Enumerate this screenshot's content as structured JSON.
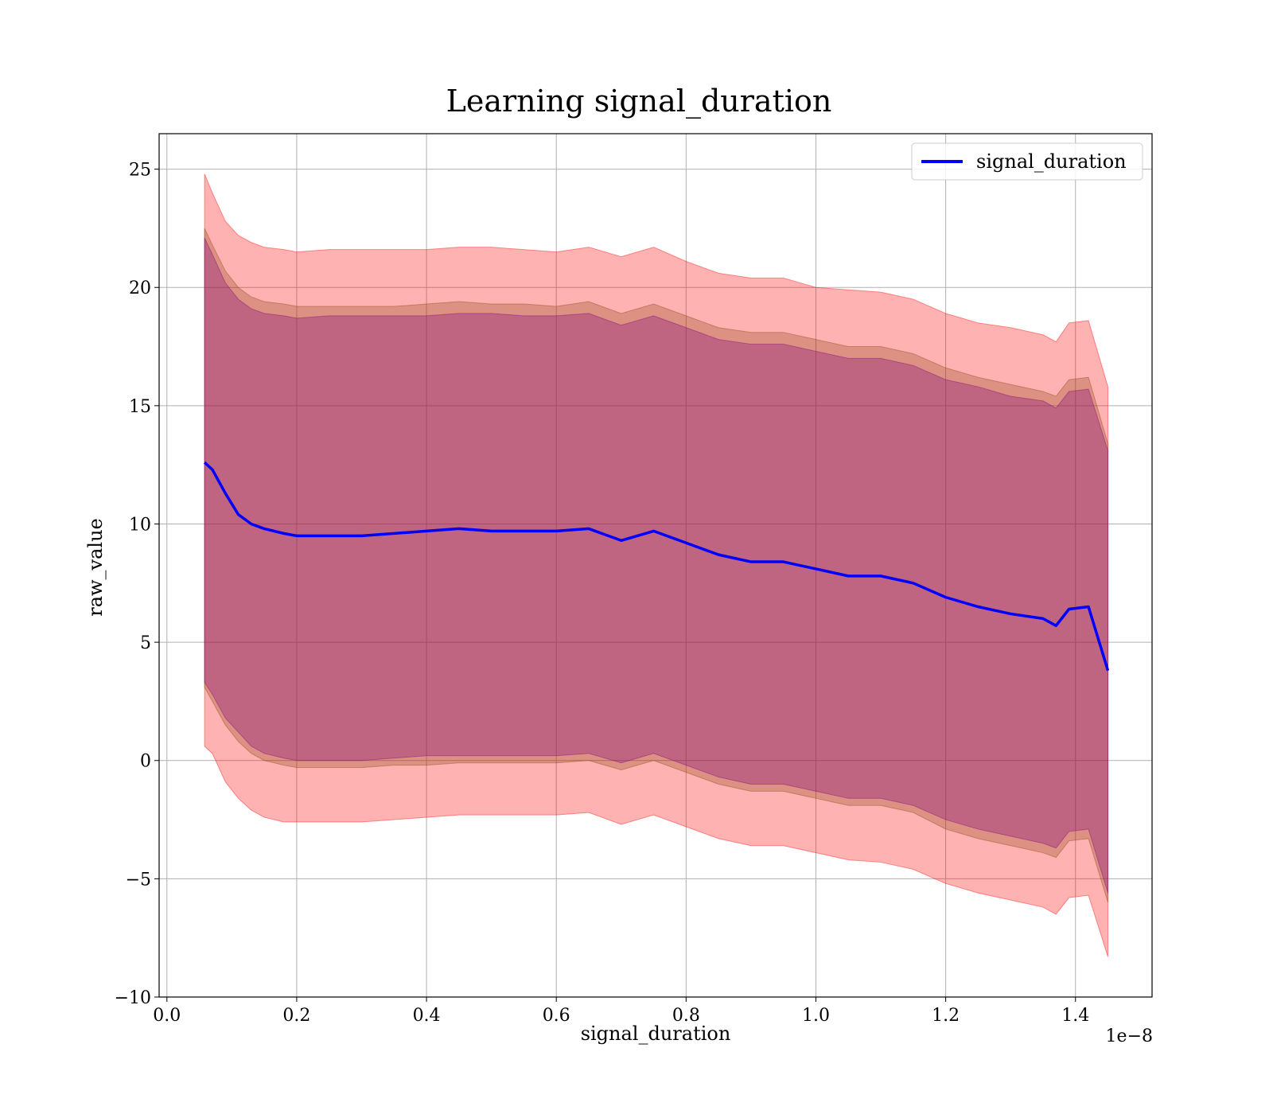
{
  "chart_data": {
    "type": "line",
    "title": "Learning signal_duration",
    "xlabel": "signal_duration",
    "ylabel": "raw_value",
    "x_offset_text": "1e−8",
    "x_scale": 1e-08,
    "xlim": [
      -0.012,
      1.518
    ],
    "ylim": [
      -10,
      26.5
    ],
    "x_ticks": [
      0.0,
      0.2,
      0.4,
      0.6,
      0.8,
      1.0,
      1.2,
      1.4
    ],
    "x_tick_labels": [
      "0.0",
      "0.2",
      "0.4",
      "0.6",
      "0.8",
      "1.0",
      "1.2",
      "1.4"
    ],
    "y_ticks": [
      -10,
      -5,
      0,
      5,
      10,
      15,
      20,
      25
    ],
    "y_tick_labels": [
      "−10",
      "−5",
      "0",
      "5",
      "10",
      "15",
      "20",
      "25"
    ],
    "grid": true,
    "legend_position": "top-right",
    "series": [
      {
        "name": "signal_duration",
        "color": "#0000ff",
        "x": [
          0.058,
          0.07,
          0.09,
          0.11,
          0.13,
          0.15,
          0.18,
          0.2,
          0.25,
          0.3,
          0.35,
          0.4,
          0.45,
          0.5,
          0.55,
          0.6,
          0.65,
          0.7,
          0.75,
          0.8,
          0.85,
          0.9,
          0.95,
          1.0,
          1.05,
          1.1,
          1.15,
          1.2,
          1.25,
          1.3,
          1.35,
          1.37,
          1.39,
          1.42,
          1.45
        ],
        "values": [
          12.6,
          12.3,
          11.3,
          10.4,
          10.0,
          9.8,
          9.6,
          9.5,
          9.5,
          9.5,
          9.6,
          9.7,
          9.8,
          9.7,
          9.7,
          9.7,
          9.8,
          9.3,
          9.7,
          9.2,
          8.7,
          8.4,
          8.4,
          8.1,
          7.8,
          7.8,
          7.5,
          6.9,
          6.5,
          6.2,
          6.0,
          5.7,
          6.4,
          6.5,
          3.8
        ]
      }
    ],
    "bands": [
      {
        "color": "#ff0000",
        "x": [
          0.058,
          0.07,
          0.09,
          0.11,
          0.13,
          0.15,
          0.18,
          0.2,
          0.25,
          0.3,
          0.35,
          0.4,
          0.45,
          0.5,
          0.55,
          0.6,
          0.65,
          0.7,
          0.75,
          0.8,
          0.85,
          0.9,
          0.95,
          1.0,
          1.05,
          1.1,
          1.15,
          1.2,
          1.25,
          1.3,
          1.35,
          1.37,
          1.39,
          1.42,
          1.45
        ],
        "upper": [
          24.8,
          24.0,
          22.8,
          22.2,
          21.9,
          21.7,
          21.6,
          21.5,
          21.6,
          21.6,
          21.6,
          21.6,
          21.7,
          21.7,
          21.6,
          21.5,
          21.7,
          21.3,
          21.7,
          21.1,
          20.6,
          20.4,
          20.4,
          20.0,
          19.9,
          19.8,
          19.5,
          18.9,
          18.5,
          18.3,
          18.0,
          17.7,
          18.5,
          18.6,
          15.8
        ],
        "lower": [
          0.6,
          0.3,
          -0.9,
          -1.6,
          -2.1,
          -2.4,
          -2.6,
          -2.6,
          -2.6,
          -2.6,
          -2.5,
          -2.4,
          -2.3,
          -2.3,
          -2.3,
          -2.3,
          -2.2,
          -2.7,
          -2.3,
          -2.8,
          -3.3,
          -3.6,
          -3.6,
          -3.9,
          -4.2,
          -4.3,
          -4.6,
          -5.2,
          -5.6,
          -5.9,
          -6.2,
          -6.5,
          -5.8,
          -5.7,
          -8.3
        ]
      },
      {
        "color": "#8b4513",
        "x": [
          0.058,
          0.07,
          0.09,
          0.11,
          0.13,
          0.15,
          0.18,
          0.2,
          0.25,
          0.3,
          0.35,
          0.4,
          0.45,
          0.5,
          0.55,
          0.6,
          0.65,
          0.7,
          0.75,
          0.8,
          0.85,
          0.9,
          0.95,
          1.0,
          1.05,
          1.1,
          1.15,
          1.2,
          1.25,
          1.3,
          1.35,
          1.37,
          1.39,
          1.42,
          1.45
        ],
        "upper": [
          22.5,
          21.8,
          20.7,
          20.0,
          19.6,
          19.4,
          19.3,
          19.2,
          19.2,
          19.2,
          19.2,
          19.3,
          19.4,
          19.3,
          19.3,
          19.2,
          19.4,
          18.9,
          19.3,
          18.8,
          18.3,
          18.1,
          18.1,
          17.8,
          17.5,
          17.5,
          17.2,
          16.6,
          16.2,
          15.9,
          15.6,
          15.4,
          16.1,
          16.2,
          13.4
        ],
        "lower": [
          3.1,
          2.5,
          1.5,
          0.8,
          0.3,
          0.0,
          -0.2,
          -0.3,
          -0.3,
          -0.3,
          -0.2,
          -0.2,
          -0.1,
          -0.1,
          -0.1,
          -0.1,
          0.0,
          -0.4,
          0.0,
          -0.5,
          -1.0,
          -1.3,
          -1.3,
          -1.6,
          -1.9,
          -1.9,
          -2.2,
          -2.9,
          -3.3,
          -3.6,
          -3.9,
          -4.1,
          -3.4,
          -3.3,
          -6.0
        ]
      },
      {
        "color": "#800080",
        "x": [
          0.058,
          0.07,
          0.09,
          0.11,
          0.13,
          0.15,
          0.18,
          0.2,
          0.25,
          0.3,
          0.35,
          0.4,
          0.45,
          0.5,
          0.55,
          0.6,
          0.65,
          0.7,
          0.75,
          0.8,
          0.85,
          0.9,
          0.95,
          1.0,
          1.05,
          1.1,
          1.15,
          1.2,
          1.25,
          1.3,
          1.35,
          1.37,
          1.39,
          1.42,
          1.45
        ],
        "upper": [
          22.1,
          21.4,
          20.2,
          19.5,
          19.1,
          18.9,
          18.8,
          18.7,
          18.8,
          18.8,
          18.8,
          18.8,
          18.9,
          18.9,
          18.8,
          18.8,
          18.9,
          18.4,
          18.8,
          18.3,
          17.8,
          17.6,
          17.6,
          17.3,
          17.0,
          17.0,
          16.7,
          16.1,
          15.8,
          15.4,
          15.2,
          14.9,
          15.6,
          15.7,
          13.1
        ],
        "lower": [
          3.3,
          2.8,
          1.8,
          1.2,
          0.6,
          0.3,
          0.1,
          0.0,
          0.0,
          0.0,
          0.1,
          0.2,
          0.2,
          0.2,
          0.2,
          0.2,
          0.3,
          -0.1,
          0.3,
          -0.2,
          -0.7,
          -1.0,
          -1.0,
          -1.3,
          -1.6,
          -1.6,
          -1.9,
          -2.5,
          -2.9,
          -3.2,
          -3.5,
          -3.7,
          -3.0,
          -2.9,
          -5.6
        ]
      }
    ]
  }
}
